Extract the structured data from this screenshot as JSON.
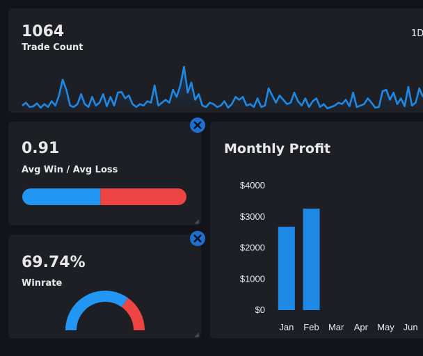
{
  "trade_count": {
    "value": "1064",
    "label": "Trade Count",
    "range_button": "1D",
    "sparkline": [
      6,
      10,
      4,
      5,
      9,
      3,
      8,
      4,
      12,
      6,
      20,
      42,
      28,
      6,
      4,
      8,
      22,
      8,
      4,
      18,
      6,
      10,
      22,
      5,
      18,
      6,
      24,
      25,
      16,
      20,
      8,
      4,
      8,
      6,
      12,
      10,
      34,
      6,
      10,
      14,
      10,
      28,
      18,
      34,
      60,
      24,
      38,
      14,
      22,
      6,
      4,
      10,
      8,
      4,
      6,
      12,
      3,
      8,
      18,
      14,
      18,
      6,
      8,
      4,
      16,
      4,
      6,
      30,
      20,
      10,
      20,
      14,
      8,
      10,
      24,
      12,
      6,
      16,
      4,
      12,
      16,
      4,
      8,
      2,
      4,
      6,
      10,
      8,
      14,
      5,
      24,
      4,
      6,
      8,
      16,
      10,
      3,
      4,
      26,
      28,
      14,
      24,
      8,
      16,
      5,
      32,
      6,
      10,
      30,
      18
    ]
  },
  "avg_win_loss": {
    "value": "0.91",
    "label": "Avg Win / Avg Loss",
    "win_share": 47.6
  },
  "winrate": {
    "value": "69.74%",
    "label": "Winrate",
    "gauge_percent": 69.74
  },
  "chart_data": {
    "type": "bar",
    "title": "Monthly Profit",
    "categories": [
      "Jan",
      "Feb",
      "Mar",
      "Apr",
      "May",
      "Jun"
    ],
    "values": [
      2680,
      3260,
      null,
      null,
      null,
      null
    ],
    "color": "#1e88e5",
    "ylim": [
      0,
      4000
    ],
    "yticks": [
      {
        "value": 0,
        "label": "$0"
      },
      {
        "value": 1000,
        "label": "$1000"
      },
      {
        "value": 2000,
        "label": "$2000"
      },
      {
        "value": 3000,
        "label": "$3000"
      },
      {
        "value": 4000,
        "label": "$4000"
      }
    ]
  }
}
